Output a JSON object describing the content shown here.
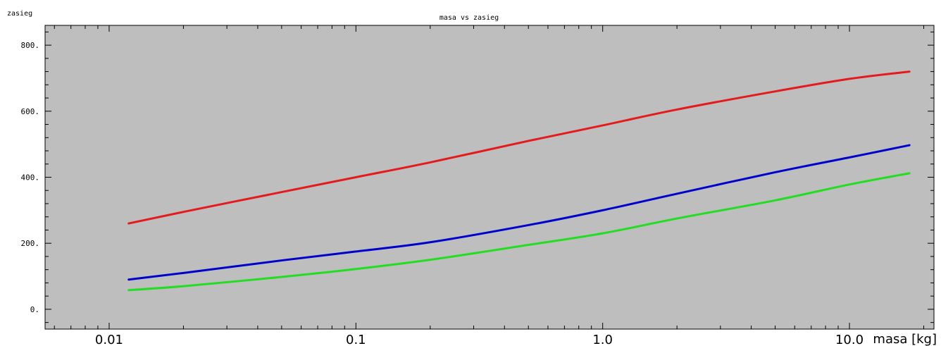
{
  "chart_data": {
    "type": "line",
    "title": "masa vs zasieg",
    "xlabel": "masa [kg]",
    "ylabel": "zasieg",
    "x_scale": "log",
    "xlim": [
      0.0055,
      22
    ],
    "ylim": [
      -60,
      860
    ],
    "x_ticks": [
      0.01,
      0.1,
      1.0,
      10.0
    ],
    "x_tick_labels": [
      "0.01",
      "0.1",
      "1.0",
      "10.0"
    ],
    "y_ticks": [
      0,
      200,
      400,
      600,
      800
    ],
    "y_tick_labels": [
      "0.",
      "200.",
      "400.",
      "600.",
      "800."
    ],
    "grid": false,
    "background": "#bebebe",
    "series": [
      {
        "color": "#e41a1c",
        "x": [
          0.012,
          0.02,
          0.05,
          0.1,
          0.2,
          0.5,
          1.0,
          2.0,
          5.0,
          10.0,
          17.5
        ],
        "y": [
          260,
          295,
          355,
          400,
          445,
          510,
          557,
          605,
          660,
          698,
          720
        ]
      },
      {
        "color": "#0000cc",
        "x": [
          0.012,
          0.02,
          0.05,
          0.1,
          0.2,
          0.5,
          1.0,
          2.0,
          5.0,
          10.0,
          17.5
        ],
        "y": [
          90,
          110,
          148,
          175,
          203,
          255,
          300,
          350,
          415,
          460,
          497
        ]
      },
      {
        "color": "#22dd22",
        "x": [
          0.012,
          0.02,
          0.05,
          0.1,
          0.2,
          0.5,
          1.0,
          2.0,
          5.0,
          10.0,
          17.5
        ],
        "y": [
          58,
          70,
          98,
          122,
          150,
          195,
          230,
          275,
          330,
          378,
          412
        ]
      }
    ]
  }
}
